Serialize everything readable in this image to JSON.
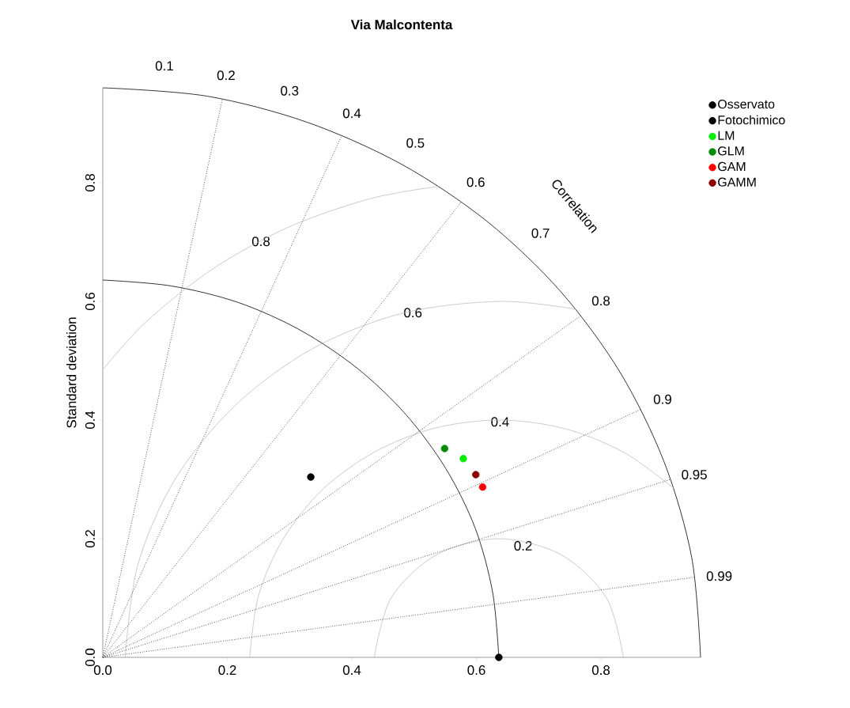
{
  "chart_data": {
    "type": "scatter",
    "title": "Via Malcontenta",
    "ylabel": "Standard deviation",
    "xlim": [
      0,
      0.96
    ],
    "ylim": [
      0,
      0.96
    ],
    "xticks": [
      {
        "value": 0,
        "label": "0.0"
      },
      0.2,
      0.4,
      0.6,
      0.8
    ],
    "yticks": [
      {
        "value": 0,
        "label": "0.0"
      },
      0.2,
      0.4,
      0.6,
      0.8
    ],
    "legend": "top right",
    "series": [
      {
        "name": "Osservato",
        "color": "#000000",
        "marker": "circle",
        "x": [
          0.636
        ],
        "values": [
          0
        ]
      },
      {
        "name": "Fotochimico",
        "color": "#000000",
        "marker": "circle",
        "x": [
          0.334
        ],
        "values": [
          0.304
        ]
      },
      {
        "name": "LM",
        "color": "#00ee00",
        "marker": "circle",
        "x": [
          0.579
        ],
        "values": [
          0.335
        ]
      },
      {
        "name": "GLM",
        "color": "#008b00",
        "marker": "circle",
        "x": [
          0.549
        ],
        "values": [
          0.352
        ]
      },
      {
        "name": "GAM",
        "color": "#ff0000",
        "marker": "circle",
        "x": [
          0.61
        ],
        "values": [
          0.287
        ]
      },
      {
        "name": "GAMM",
        "color": "#8b0000",
        "marker": "circle",
        "x": [
          0.599
        ],
        "values": [
          0.308
        ]
      },
      {
        "type": "line",
        "color": "#000000",
        "marker": "none",
        "line_style": "solid",
        "x": [
          0.96,
          0.946,
          0.902,
          0.831,
          0.735,
          0.617,
          0.48,
          0.328,
          0.167,
          0
        ],
        "values": [
          0,
          0.167,
          0.328,
          0.48,
          0.617,
          0.735,
          0.831,
          0.902,
          0.946,
          0.96
        ]
      },
      {
        "type": "line",
        "color": "#000000",
        "marker": "none",
        "line_style": "solid",
        "x": [
          0.636,
          0.626,
          0.598,
          0.551,
          0.487,
          0.409,
          0.318,
          0.218,
          0.11,
          0
        ],
        "values": [
          0,
          0.11,
          0.218,
          0.318,
          0.409,
          0.487,
          0.551,
          0.598,
          0.626,
          0.636
        ]
      },
      {
        "type": "line",
        "color": "#bebebe",
        "marker": "none",
        "line_style": "solid",
        "x": [
          0.836,
          0.809,
          0.736,
          0.636,
          0.536,
          0.463,
          0.436
        ],
        "values": [
          0,
          0.1,
          0.173,
          0.2,
          0.173,
          0.1,
          0
        ]
      },
      {
        "type": "line",
        "color": "#bebebe",
        "marker": "none",
        "line_style": "solid",
        "x": [
          0.917,
          0.836,
          0.74,
          0.636,
          0.532,
          0.436,
          0.353,
          0.29,
          0.25,
          0.236
        ],
        "values": [
          0.285,
          0.346,
          0.386,
          0.4,
          0.386,
          0.346,
          0.283,
          0.2,
          0.104,
          0
        ]
      },
      {
        "type": "line",
        "color": "#bebebe",
        "marker": "none",
        "line_style": "solid",
        "x": [
          0.759,
          0.636,
          0.481,
          0.336,
          0.212,
          0.116,
          0.056,
          0.036
        ],
        "values": [
          0.587,
          0.6,
          0.58,
          0.52,
          0.424,
          0.3,
          0.155,
          0
        ]
      },
      {
        "type": "line",
        "color": "#bebebe",
        "marker": "none",
        "line_style": "solid",
        "x": [
          0.54,
          0.429,
          0.298,
          0.177,
          0.07,
          0
        ],
        "values": [
          0.794,
          0.773,
          0.725,
          0.655,
          0.566,
          0.485
        ]
      },
      {
        "type": "line",
        "color": "#000000",
        "marker": "none",
        "line_style": "dotted",
        "x": [
          0,
          0.192
        ],
        "values": [
          0,
          0.941
        ]
      },
      {
        "type": "line",
        "color": "#000000",
        "marker": "none",
        "line_style": "dotted",
        "x": [
          0,
          0.384
        ],
        "values": [
          0,
          0.88
        ]
      },
      {
        "type": "line",
        "color": "#000000",
        "marker": "none",
        "line_style": "dotted",
        "x": [
          0,
          0.576
        ],
        "values": [
          0,
          0.768
        ]
      },
      {
        "type": "line",
        "color": "#000000",
        "marker": "none",
        "line_style": "dotted",
        "x": [
          0,
          0.768
        ],
        "values": [
          0,
          0.576
        ]
      },
      {
        "type": "line",
        "color": "#000000",
        "marker": "none",
        "line_style": "dotted",
        "x": [
          0,
          0.864
        ],
        "values": [
          0,
          0.418
        ]
      },
      {
        "type": "line",
        "color": "#000000",
        "marker": "none",
        "line_style": "dotted",
        "x": [
          0,
          0.912
        ],
        "values": [
          0,
          0.3
        ]
      },
      {
        "type": "line",
        "color": "#000000",
        "marker": "none",
        "line_style": "dotted",
        "x": [
          0,
          0.95
        ],
        "values": [
          0,
          0.135
        ]
      }
    ],
    "annotations": [
      "Correlation",
      "0.1",
      "0.2",
      "0.3",
      "0.4",
      "0.5",
      "0.6",
      "0.7",
      "0.8",
      "0.9",
      "0.95",
      "0.99",
      "0.2",
      "0.4",
      "0.6",
      "0.8"
    ]
  }
}
